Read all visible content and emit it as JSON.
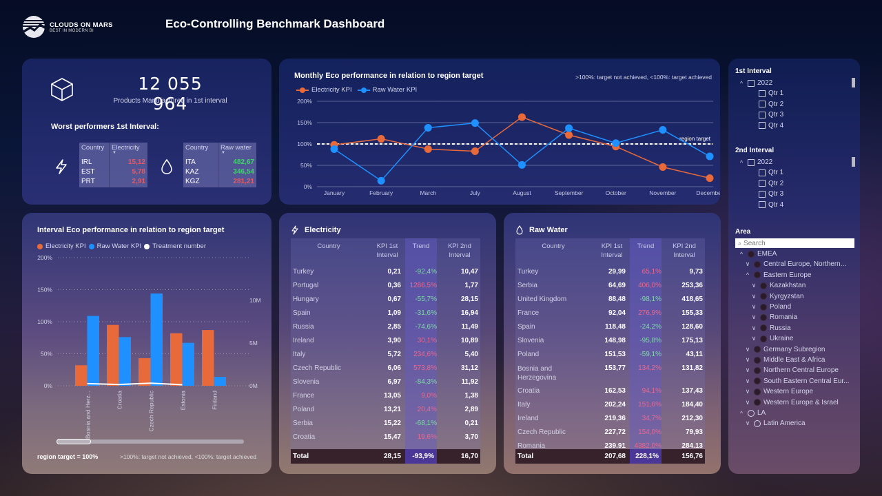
{
  "header": {
    "logo_line1": "CLOUDS ON MARS",
    "logo_line2": "BEST IN MODERN BI",
    "title": "Eco-Controlling Benchmark Dashboard"
  },
  "kpi": {
    "value": "12 055 964",
    "label": "Products Manufactured in 1st interval",
    "icon": "cube-icon"
  },
  "worst": {
    "title": "Worst performers 1st Interval:",
    "electricity": {
      "icon": "lightning-icon",
      "headers": [
        "Country",
        "Electricity"
      ],
      "rows": [
        {
          "country": "IRL",
          "value": "15,12",
          "status": "neg"
        },
        {
          "country": "EST",
          "value": "5,78",
          "status": "neg"
        },
        {
          "country": "PRT",
          "value": "2,91",
          "status": "neg"
        }
      ]
    },
    "water": {
      "icon": "water-drop-icon",
      "headers": [
        "Country",
        "Raw water"
      ],
      "rows": [
        {
          "country": "ITA",
          "value": "482,67",
          "status": "pos"
        },
        {
          "country": "KAZ",
          "value": "346,54",
          "status": "pos"
        },
        {
          "country": "KGZ",
          "value": "281,21",
          "status": "neg"
        }
      ]
    }
  },
  "colors": {
    "electricity": "#e8693a",
    "water": "#1e90ff",
    "treatment": "#ffffff",
    "trend_positive": "#e86a8d",
    "trend_negative": "#7fd9a6"
  },
  "line_chart": {
    "note": ">100%: target not achieved, <100%: target achieved",
    "target_label": "region target"
  },
  "bar_chart": {
    "footer_left": "region target = 100%",
    "footer_right": ">100%: target not achieved, <100%: target achieved"
  },
  "chart_data": [
    {
      "type": "line",
      "title": "Monthly Eco performance in relation to region target",
      "categories": [
        "January",
        "February",
        "March",
        "July",
        "August",
        "September",
        "October",
        "November",
        "December"
      ],
      "series": [
        {
          "name": "Electricity KPI",
          "values": [
            98,
            112,
            88,
            83,
            163,
            121,
            94,
            46,
            20
          ]
        },
        {
          "name": "Raw Water KPI",
          "values": [
            88,
            14,
            138,
            149,
            51,
            137,
            102,
            133,
            71
          ]
        }
      ],
      "reference_line": {
        "label": "region target",
        "value": 100
      },
      "ylim": [
        0,
        200
      ],
      "yticks": [
        "0%",
        "50%",
        "100%",
        "150%",
        "200%"
      ],
      "legend": "top-left",
      "grid": true
    },
    {
      "type": "bar",
      "title": "Interval Eco performance in relation to region target",
      "categories": [
        "Bosnia and Herz...",
        "Croatia",
        "Czech Republic",
        "Estonia",
        "Finland"
      ],
      "series": [
        {
          "name": "Electricity KPI",
          "values": [
            32,
            95,
            43,
            82,
            87
          ],
          "axis": "left"
        },
        {
          "name": "Raw Water KPI",
          "values": [
            109,
            76,
            144,
            67,
            14
          ],
          "axis": "left"
        },
        {
          "name": "Treatment number",
          "type": "line",
          "values": [
            0.25,
            0.15,
            0.3,
            0.12,
            null
          ],
          "axis": "right",
          "unit": "M"
        }
      ],
      "ylim": [
        0,
        200
      ],
      "yticks": [
        "0%",
        "50%",
        "100%",
        "150%",
        "200%"
      ],
      "y2lim": [
        0,
        15
      ],
      "y2ticks": [
        "0M",
        "5M",
        "10M"
      ],
      "legend": "top-left",
      "grid": true
    }
  ],
  "electricity_table": {
    "title": "Electricity",
    "headers": [
      "Country",
      "KPI 1st Interval",
      "Trend",
      "KPI 2nd Interval"
    ],
    "rows": [
      {
        "country": "Turkey",
        "k1": "0,21",
        "trend": "-92,4%",
        "k2": "10,47"
      },
      {
        "country": "Portugal",
        "k1": "0,36",
        "trend": "1286,5%",
        "k2": "1,77"
      },
      {
        "country": "Hungary",
        "k1": "0,67",
        "trend": "-55,7%",
        "k2": "28,15"
      },
      {
        "country": "Spain",
        "k1": "1,09",
        "trend": "-31,6%",
        "k2": "16,94"
      },
      {
        "country": "Russia",
        "k1": "2,85",
        "trend": "-74,6%",
        "k2": "11,49"
      },
      {
        "country": "Ireland",
        "k1": "3,90",
        "trend": "30,1%",
        "k2": "10,89"
      },
      {
        "country": "Italy",
        "k1": "5,72",
        "trend": "234,6%",
        "k2": "5,40"
      },
      {
        "country": "Czech Republic",
        "k1": "6,06",
        "trend": "573,8%",
        "k2": "31,12"
      },
      {
        "country": "Slovenia",
        "k1": "6,97",
        "trend": "-84,3%",
        "k2": "11,92"
      },
      {
        "country": "France",
        "k1": "13,05",
        "trend": "9,0%",
        "k2": "1,38"
      },
      {
        "country": "Poland",
        "k1": "13,21",
        "trend": "20,4%",
        "k2": "2,89"
      },
      {
        "country": "Serbia",
        "k1": "15,22",
        "trend": "-68,1%",
        "k2": "0,21"
      },
      {
        "country": "Croatia",
        "k1": "15,47",
        "trend": "19,6%",
        "k2": "3,70"
      }
    ],
    "total": {
      "label": "Total",
      "k1": "28,15",
      "trend": "-93,9%",
      "k2": "16,70"
    }
  },
  "water_table": {
    "title": "Raw Water",
    "headers": [
      "Country",
      "KPI 1st Interval",
      "Trend",
      "KPI 2nd Interval"
    ],
    "rows": [
      {
        "country": "Turkey",
        "k1": "29,99",
        "trend": "65,1%",
        "k2": "9,73"
      },
      {
        "country": "Serbia",
        "k1": "64,69",
        "trend": "406,0%",
        "k2": "253,36"
      },
      {
        "country": "United Kingdom",
        "k1": "88,48",
        "trend": "-98,1%",
        "k2": "418,65"
      },
      {
        "country": "France",
        "k1": "92,04",
        "trend": "276,9%",
        "k2": "155,33"
      },
      {
        "country": "Spain",
        "k1": "118,48",
        "trend": "-24,2%",
        "k2": "128,60"
      },
      {
        "country": "Slovenia",
        "k1": "148,98",
        "trend": "-95,8%",
        "k2": "175,13"
      },
      {
        "country": "Poland",
        "k1": "151,53",
        "trend": "-59,1%",
        "k2": "43,11"
      },
      {
        "country": "Bosnia and Herzegovina",
        "k1": "153,77",
        "trend": "134,2%",
        "k2": "131,82"
      },
      {
        "country": "Croatia",
        "k1": "162,53",
        "trend": "94,1%",
        "k2": "137,43"
      },
      {
        "country": "Italy",
        "k1": "202,24",
        "trend": "151,6%",
        "k2": "184,40"
      },
      {
        "country": "Ireland",
        "k1": "219,36",
        "trend": "34,7%",
        "k2": "212,30"
      },
      {
        "country": "Czech Republic",
        "k1": "227,72",
        "trend": "154,0%",
        "k2": "79,93"
      },
      {
        "country": "Romania",
        "k1": "239.91",
        "trend": "4382.0%",
        "k2": "284.13"
      }
    ],
    "total": {
      "label": "Total",
      "k1": "207,68",
      "trend": "228,1%",
      "k2": "156,76"
    }
  },
  "slicers": {
    "interval1": {
      "title": "1st Interval",
      "year": "2022",
      "quarters": [
        "Qtr 1",
        "Qtr 2",
        "Qtr 3",
        "Qtr 4"
      ]
    },
    "interval2": {
      "title": "2nd Interval",
      "year": "2022",
      "quarters": [
        "Qtr 1",
        "Qtr 2",
        "Qtr 3",
        "Qtr 4"
      ]
    },
    "area": {
      "title": "Area",
      "search_placeholder": "Search",
      "items": [
        {
          "label": "EMEA",
          "level": 0,
          "chevron": "up",
          "radio": "filled"
        },
        {
          "label": "Central Europe, Northern...",
          "level": 1,
          "chevron": "down",
          "radio": "filled"
        },
        {
          "label": "Eastern Europe",
          "level": 1,
          "chevron": "up",
          "radio": "filled"
        },
        {
          "label": "Kazakhstan",
          "level": 2,
          "chevron": "down",
          "radio": "filled"
        },
        {
          "label": "Kyrgyzstan",
          "level": 2,
          "chevron": "down",
          "radio": "filled"
        },
        {
          "label": "Poland",
          "level": 2,
          "chevron": "down",
          "radio": "filled"
        },
        {
          "label": "Romania",
          "level": 2,
          "chevron": "down",
          "radio": "filled"
        },
        {
          "label": "Russia",
          "level": 2,
          "chevron": "down",
          "radio": "filled"
        },
        {
          "label": "Ukraine",
          "level": 2,
          "chevron": "down",
          "radio": "filled"
        },
        {
          "label": "Germany Subregion",
          "level": 1,
          "chevron": "down",
          "radio": "filled"
        },
        {
          "label": "Middle East & Africa",
          "level": 1,
          "chevron": "down",
          "radio": "filled"
        },
        {
          "label": "Northern Central Europe",
          "level": 1,
          "chevron": "down",
          "radio": "filled"
        },
        {
          "label": "South Eastern Central Eur...",
          "level": 1,
          "chevron": "down",
          "radio": "filled"
        },
        {
          "label": "Western Europe",
          "level": 1,
          "chevron": "down",
          "radio": "filled"
        },
        {
          "label": "Western Europe & Israel",
          "level": 1,
          "chevron": "down",
          "radio": "filled"
        },
        {
          "label": "LA",
          "level": 0,
          "chevron": "up",
          "radio": "empty"
        },
        {
          "label": "Latin America",
          "level": 1,
          "chevron": "down",
          "radio": "empty"
        }
      ]
    }
  }
}
